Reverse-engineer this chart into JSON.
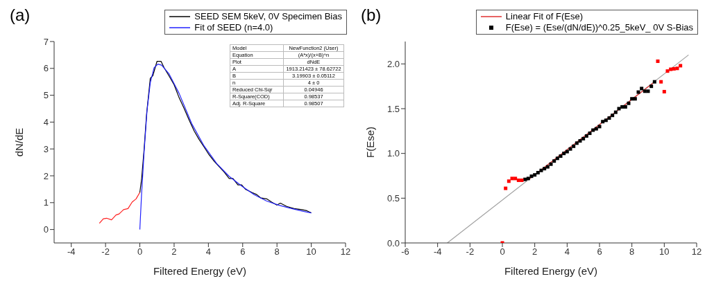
{
  "chart_data": [
    {
      "type": "line",
      "title": "(a)",
      "xlabel": "Filtered Energy (eV)",
      "ylabel": "dN/dE",
      "xlim": [
        -5,
        12
      ],
      "xticks": [
        -4,
        -2,
        0,
        2,
        4,
        6,
        8,
        10,
        12
      ],
      "ylim": [
        -0.5,
        7
      ],
      "yticks": [
        0,
        1,
        2,
        3,
        4,
        5,
        6,
        7
      ],
      "legend": "top right",
      "marker": "none",
      "annotations": [
        "Model",
        "NewFunction2 (User)",
        "Equation",
        "(A*x)/(x+B)^n",
        "Plot",
        "dNdE",
        "A",
        "1913.21423 ± 78.62722",
        "B",
        "3.19903 ± 0.05112",
        "n",
        "4 ± 0",
        "Reduced Chi-Sqr",
        "0.04946",
        "R-Square(COD)",
        "0.98537",
        "Adj. R-Square",
        "0.98507"
      ],
      "series": [
        {
          "color": "#ff2020",
          "x": [
            -2.36,
            -2.13,
            -1.94,
            -1.65,
            -1.39,
            -1.21,
            -0.95,
            -0.69,
            -0.45,
            -0.22,
            0
          ],
          "values": [
            0.23,
            0.4,
            0.42,
            0.36,
            0.54,
            0.58,
            0.74,
            0.78,
            1.02,
            1.14,
            1.38
          ]
        },
        {
          "name": "SEED SEM 5keV, 0V Specimen Bias",
          "color": "#000000",
          "x": [
            0,
            0.1,
            0.25,
            0.39,
            0.61,
            0.76,
            0.9,
            1.0,
            1.24,
            1.42,
            1.71,
            2.0,
            2.29,
            2.58,
            2.88,
            3.17,
            3.46,
            3.75,
            4.04,
            4.34,
            4.63,
            4.92,
            5.21,
            5.43,
            5.72,
            5.94,
            6.16,
            6.53,
            6.82,
            7.04,
            7.4,
            7.69,
            7.99,
            8.2,
            8.57,
            9.0,
            9.45,
            9.74,
            10.0
          ],
          "values": [
            1.38,
            1.86,
            3.0,
            4.27,
            5.63,
            5.73,
            6.04,
            6.26,
            6.26,
            6.02,
            5.71,
            5.39,
            4.91,
            4.51,
            4.07,
            3.67,
            3.35,
            3.07,
            2.78,
            2.54,
            2.34,
            2.14,
            1.9,
            1.9,
            1.66,
            1.66,
            1.5,
            1.38,
            1.3,
            1.18,
            1.14,
            1.02,
            0.91,
            0.98,
            0.86,
            0.78,
            0.74,
            0.7,
            0.62
          ]
        },
        {
          "name": "Fit of SEED (n=4.0)",
          "color": "#2020ff",
          "x": [
            0,
            0.1,
            0.25,
            0.42,
            0.61,
            0.83,
            1.05,
            1.27,
            1.71,
            2.29,
            3.02,
            3.75,
            4.48,
            5.21,
            5.94,
            6.67,
            7.4,
            8.13,
            8.86,
            9.59,
            10.0
          ],
          "values": [
            0,
            1.3,
            2.9,
            4.43,
            5.47,
            6.02,
            6.16,
            6.12,
            5.79,
            5.07,
            3.95,
            3.11,
            2.46,
            1.98,
            1.62,
            1.3,
            1.06,
            0.9,
            0.78,
            0.67,
            0.62
          ]
        }
      ]
    },
    {
      "type": "scatter",
      "title": "(b)",
      "xlabel": "Filtered Energy (eV)",
      "ylabel": "F(Ese)",
      "xlim": [
        -6,
        12
      ],
      "xticks": [
        -6,
        -4,
        -2,
        0,
        2,
        4,
        6,
        8,
        10,
        12
      ],
      "ylim": [
        0,
        2.25
      ],
      "yticks": [
        {
          "value": 0,
          "label": "0.0"
        },
        {
          "value": 0.5,
          "label": "0.5"
        },
        {
          "value": 1,
          "label": "1.0"
        },
        {
          "value": 1.5,
          "label": "1.5"
        },
        {
          "value": 2,
          "label": "2.0"
        }
      ],
      "legend": "top right",
      "marker": "square",
      "series": [
        {
          "type": "line",
          "marker": "none",
          "color": "#a0a0a0",
          "x": [
            -3.4,
            11.5
          ],
          "values": [
            0,
            2.1
          ]
        },
        {
          "type": "line",
          "marker": "none",
          "name": "Linear Fit of F(Ese)",
          "color": "#e03030",
          "x": [
            1.6,
            9.4
          ],
          "values": [
            0.705,
            1.8
          ]
        },
        {
          "name": "F(Ese) = (Ese/(dN/dE))^0.25_5keV_ 0V S-Bias",
          "color": "#000000",
          "x": [
            1.4,
            1.6,
            1.8,
            2.0,
            2.2,
            2.4,
            2.6,
            2.8,
            3.0,
            3.2,
            3.4,
            3.6,
            3.8,
            4.0,
            4.2,
            4.4,
            4.6,
            4.8,
            5.0,
            5.2,
            5.4,
            5.6,
            5.8,
            6.0,
            6.2,
            6.4,
            6.6,
            6.8,
            7.0,
            7.2,
            7.4,
            7.6,
            7.8,
            8.0,
            8.2,
            8.4,
            8.6,
            8.8,
            9.0,
            9.2,
            9.4
          ],
          "values": [
            0.71,
            0.72,
            0.745,
            0.76,
            0.785,
            0.81,
            0.83,
            0.85,
            0.88,
            0.915,
            0.945,
            0.97,
            1.0,
            1.02,
            1.05,
            1.08,
            1.115,
            1.14,
            1.165,
            1.195,
            1.225,
            1.26,
            1.275,
            1.3,
            1.355,
            1.37,
            1.395,
            1.425,
            1.46,
            1.5,
            1.52,
            1.52,
            1.56,
            1.61,
            1.61,
            1.685,
            1.725,
            1.695,
            1.695,
            1.75,
            1.8
          ]
        },
        {
          "color": "#ff0000",
          "x": [
            0,
            0.2,
            0.4,
            0.6,
            0.8,
            1.0,
            1.2,
            9.6,
            9.8,
            10.0,
            10.2,
            10.4,
            10.6,
            10.8,
            11.0
          ],
          "values": [
            0,
            0.61,
            0.69,
            0.72,
            0.72,
            0.7,
            0.7,
            2.03,
            1.8,
            1.69,
            1.92,
            1.94,
            1.945,
            1.95,
            1.98
          ]
        }
      ]
    }
  ]
}
